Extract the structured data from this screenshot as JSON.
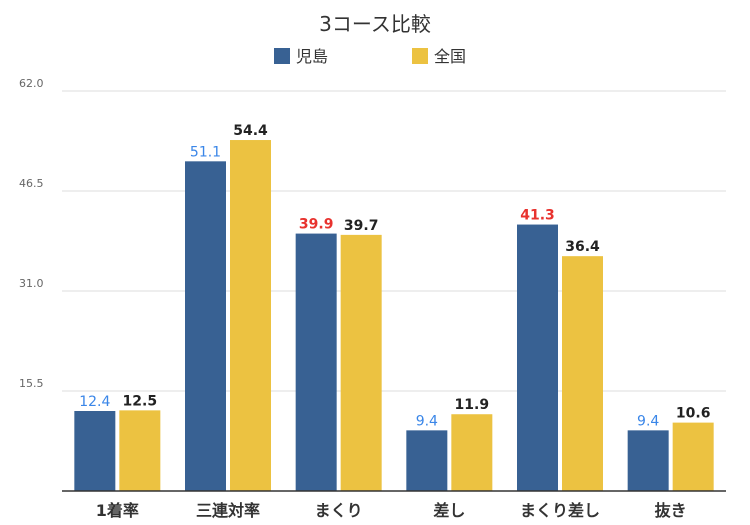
{
  "chart_data": {
    "type": "bar",
    "title": "3コース比較",
    "categories": [
      "1着率",
      "三連対率",
      "まくり",
      "差し",
      "まくり差し",
      "抜き"
    ],
    "series": [
      {
        "name": "児島",
        "color": "#386193",
        "values": [
          12.4,
          51.1,
          39.9,
          9.4,
          41.3,
          9.4
        ],
        "label_colors": [
          "#3a86e8",
          "#3a86e8",
          "#e8322e",
          "#3a86e8",
          "#e8322e",
          "#3a86e8"
        ]
      },
      {
        "name": "全国",
        "color": "#ecc241",
        "values": [
          12.5,
          54.4,
          39.7,
          11.9,
          36.4,
          10.6
        ],
        "label_colors": [
          "#222222",
          "#222222",
          "#222222",
          "#222222",
          "#222222",
          "#222222"
        ]
      }
    ],
    "yticks": [
      "15.5",
      "31.0",
      "46.5",
      "62.0"
    ],
    "ylim": [
      0,
      62.0
    ],
    "grid": true,
    "legend": "top-center",
    "xlabel": "",
    "ylabel": ""
  }
}
